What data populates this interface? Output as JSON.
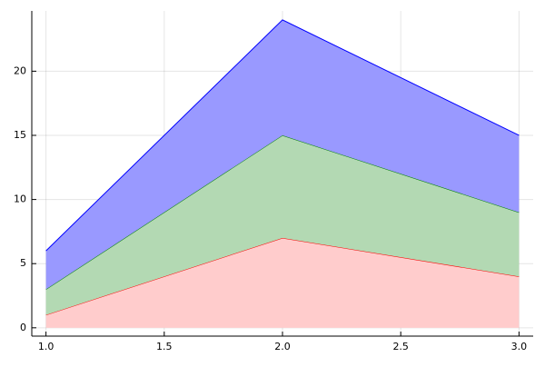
{
  "chart_data": {
    "type": "stacked-area",
    "x": [
      1,
      2,
      3
    ],
    "series": [
      {
        "color": "#ff0000",
        "fill": "#ffcccc",
        "values": [
          1,
          7,
          4
        ]
      },
      {
        "color": "#008000",
        "fill": "#b3d9b3",
        "values": [
          2,
          8,
          5
        ]
      },
      {
        "color": "#0000ff",
        "fill": "#9999ff",
        "values": [
          3,
          9,
          6
        ]
      }
    ],
    "xlim": [
      0.94,
      3.06
    ],
    "ylim": [
      -0.65,
      24.7
    ],
    "xticks": [
      {
        "value": 1,
        "label": "1.0"
      },
      {
        "value": 1.5,
        "label": "1.5"
      },
      {
        "value": 2,
        "label": "2.0"
      },
      {
        "value": 2.5,
        "label": "2.5"
      },
      {
        "value": 3,
        "label": "3.0"
      }
    ],
    "yticks": [
      0,
      5,
      10,
      15,
      20
    ],
    "grid": true
  }
}
